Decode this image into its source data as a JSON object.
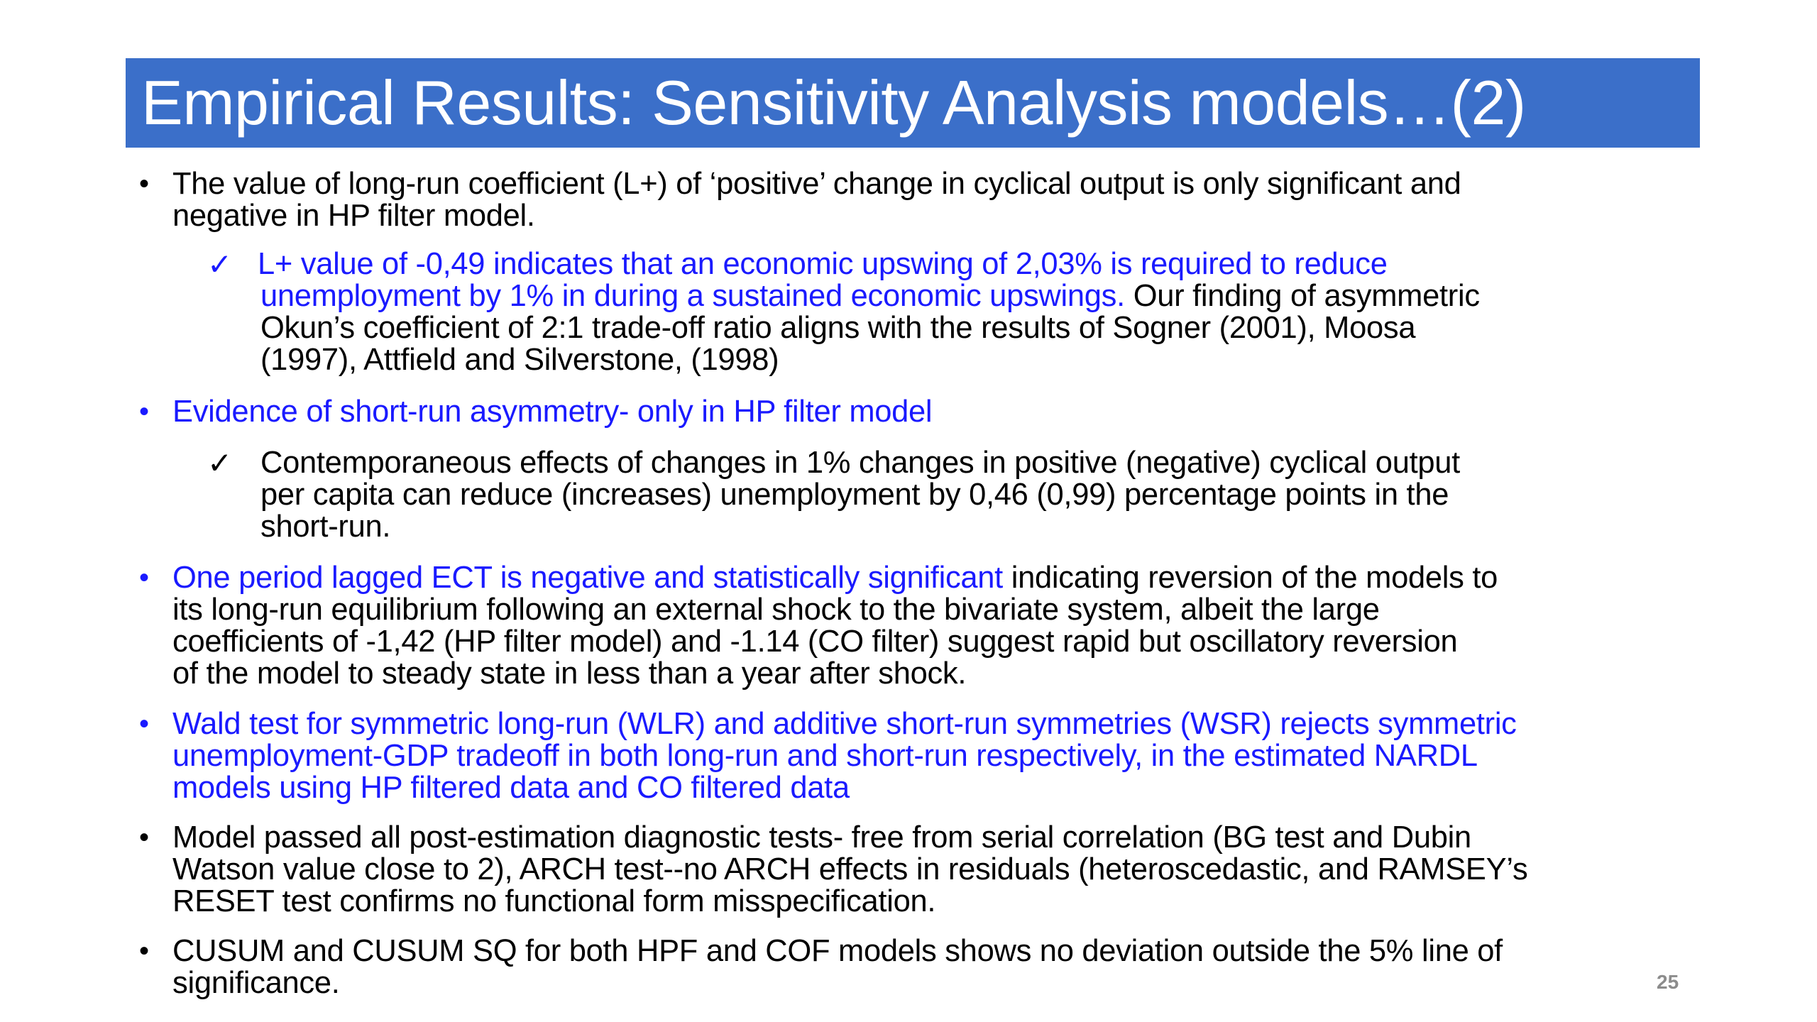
{
  "title": "Empirical Results: Sensitivity Analysis models…(2)",
  "bullet_glyph": "•",
  "check_glyph": "✓",
  "colors": {
    "title_background": "#3b6fc9",
    "title_text": "#ffffff",
    "highlight_text": "#1a1aff",
    "body_text": "#000000",
    "page_number": "#8c8c8c"
  },
  "bullets": {
    "b1": {
      "line1": "The value of long-run coefficient (L+) of ‘positive’ change in cyclical output is only significant and",
      "line2": "negative in HP filter model."
    },
    "s1": {
      "line1": " L+ value of -0,49 indicates that an economic upswing of 2,03% is required to reduce",
      "line2_blue": "unemployment by 1% in during a sustained economic upswings.",
      "line2_black": " Our finding of asymmetric",
      "line3": "Okun’s coefficient of 2:1 trade-off ratio aligns with the results of Sogner (2001), Moosa",
      "line4": "(1997), Attfield and Silverstone, (1998)"
    },
    "b2": {
      "line1": "Evidence of short-run asymmetry- only in HP filter model"
    },
    "s2": {
      "line1": "Contemporaneous effects of changes in  1% changes in positive (negative) cyclical output",
      "line2": "per capita can reduce (increases) unemployment by 0,46 (0,99) percentage points in the",
      "line3": "short-run."
    },
    "b3": {
      "line1_blue": "One period lagged ECT is negative and statistically significant",
      "line1_black": " indicating reversion of the models to",
      "line2": "its long-run equilibrium following an external shock to the bivariate system, albeit the large",
      "line3": "coefficients of -1,42 (HP filter model) and -1.14 (CO filter)  suggest rapid but oscillatory reversion",
      "line4": "of the model to steady state in less than a year after shock."
    },
    "b4": {
      "line1": "Wald test for symmetric long-run (WLR) and additive short-run symmetries (WSR) rejects symmetric",
      "line2": "unemployment-GDP tradeoff in both long-run and short-run respectively, in the estimated NARDL",
      "line3": "models using HP filtered data and CO filtered data"
    },
    "b5": {
      "line1": "Model passed all post-estimation diagnostic tests- free from serial correlation (BG test and Dubin",
      "line2": "Watson value close to 2), ARCH test--no ARCH effects in residuals (heteroscedastic, and RAMSEY’s",
      "line3": "RESET test confirms no functional form misspecification."
    },
    "b6": {
      "line1": "CUSUM and CUSUM SQ for both HPF and COF models shows no deviation outside the 5% line of",
      "line2": "significance."
    }
  },
  "page_number": "25"
}
